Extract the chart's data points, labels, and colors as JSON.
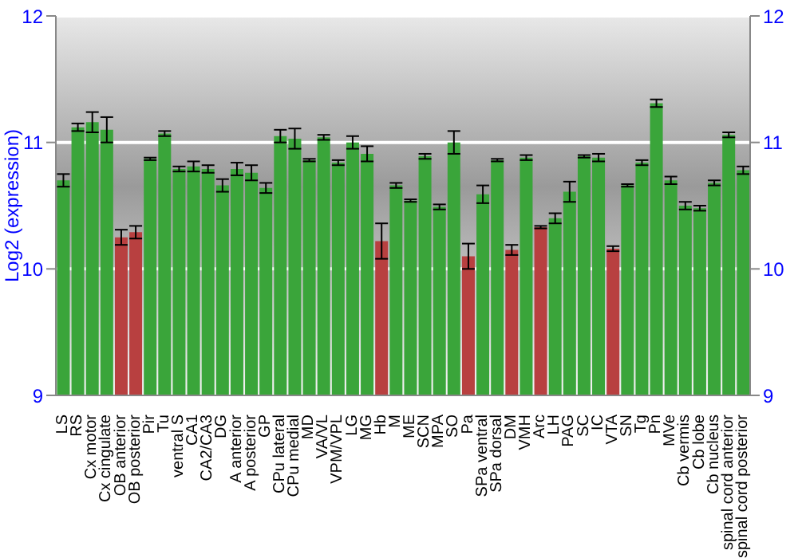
{
  "chart_data": {
    "type": "bar",
    "ylabel": "Log2 (expression)",
    "categories": [
      "LS",
      "RS",
      "Cx motor",
      "Cx cingulate",
      "OB anterior",
      "OB posterior",
      "Pir",
      "Tu",
      "ventral S",
      "CA1",
      "CA2/CA3",
      "DG",
      "A anterior",
      "A posterior",
      "GP",
      "CPu lateral",
      "CPu medial",
      "MD",
      "VA/VL",
      "VPM/VPL",
      "LG",
      "MG",
      "Hb",
      "M",
      "ME",
      "SCN",
      "MPA",
      "SO",
      "Pa",
      "SPa ventral",
      "SPa dorsal",
      "DM",
      "VMH",
      "Arc",
      "LH",
      "PAG",
      "SC",
      "IC",
      "VTA",
      "SN",
      "Tg",
      "Pn",
      "MVe",
      "Cb vermis",
      "Cb lobe",
      "Cb nucleus",
      "spinal cord anterior",
      "spinal cord posterior"
    ],
    "values": [
      10.7,
      11.12,
      11.16,
      11.1,
      10.25,
      10.29,
      10.87,
      11.07,
      10.79,
      10.81,
      10.79,
      10.66,
      10.79,
      10.76,
      10.64,
      11.05,
      11.03,
      10.86,
      11.04,
      10.84,
      11.0,
      10.91,
      10.22,
      10.66,
      10.54,
      10.89,
      10.49,
      11.0,
      10.1,
      10.59,
      10.86,
      10.15,
      10.88,
      10.33,
      10.4,
      10.61,
      10.89,
      10.88,
      10.16,
      10.66,
      10.84,
      11.31,
      10.7,
      10.5,
      10.48,
      10.68,
      11.06,
      10.78
    ],
    "errors": [
      0.05,
      0.03,
      0.08,
      0.1,
      0.06,
      0.05,
      0.01,
      0.02,
      0.02,
      0.04,
      0.03,
      0.05,
      0.05,
      0.06,
      0.04,
      0.05,
      0.08,
      0.01,
      0.02,
      0.02,
      0.05,
      0.06,
      0.14,
      0.02,
      0.01,
      0.02,
      0.02,
      0.09,
      0.1,
      0.07,
      0.01,
      0.04,
      0.02,
      0.01,
      0.04,
      0.08,
      0.01,
      0.03,
      0.02,
      0.01,
      0.02,
      0.03,
      0.03,
      0.03,
      0.02,
      0.02,
      0.02,
      0.03
    ],
    "colors": [
      "#3aa53a",
      "#3aa53a",
      "#3aa53a",
      "#3aa53a",
      "#b84040",
      "#b84040",
      "#3aa53a",
      "#3aa53a",
      "#3aa53a",
      "#3aa53a",
      "#3aa53a",
      "#3aa53a",
      "#3aa53a",
      "#3aa53a",
      "#3aa53a",
      "#3aa53a",
      "#3aa53a",
      "#3aa53a",
      "#3aa53a",
      "#3aa53a",
      "#3aa53a",
      "#3aa53a",
      "#b84040",
      "#3aa53a",
      "#3aa53a",
      "#3aa53a",
      "#3aa53a",
      "#3aa53a",
      "#b84040",
      "#3aa53a",
      "#3aa53a",
      "#b84040",
      "#3aa53a",
      "#b84040",
      "#3aa53a",
      "#3aa53a",
      "#3aa53a",
      "#3aa53a",
      "#b84040",
      "#3aa53a",
      "#3aa53a",
      "#3aa53a",
      "#3aa53a",
      "#3aa53a",
      "#3aa53a",
      "#3aa53a",
      "#3aa53a",
      "#3aa53a"
    ],
    "ylim": [
      9,
      12
    ],
    "yticks": [
      9,
      10,
      11,
      12
    ],
    "y2lim": [
      9,
      12
    ],
    "y2ticks": [
      9,
      10,
      11,
      12
    ],
    "grid": "y"
  }
}
